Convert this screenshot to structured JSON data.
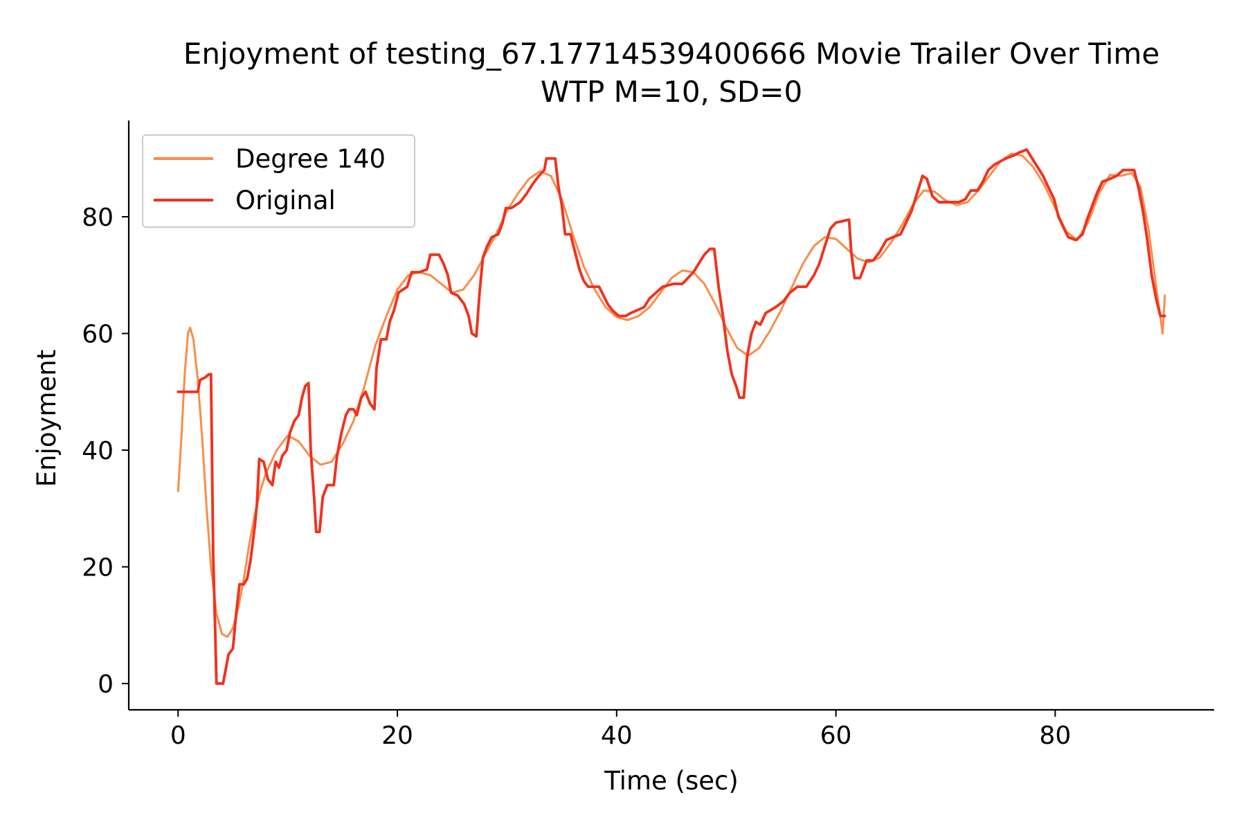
{
  "chart_data": {
    "type": "line",
    "title": "Enjoyment of testing_67.17714539400666 Movie Trailer Over Time",
    "subtitle": "WTP M=10, SD=0",
    "xlabel": "Time (sec)",
    "ylabel": "Enjoyment",
    "xlim": [
      -4.5,
      94.5
    ],
    "ylim": [
      -4.5,
      96.5
    ],
    "xticks": [
      0,
      20,
      40,
      60,
      80
    ],
    "yticks": [
      0,
      20,
      40,
      60,
      80
    ],
    "legend_position": "top-left",
    "grid": false,
    "series": [
      {
        "name": "Degree 140",
        "color": "#f98c4a",
        "line_width": 2,
        "points": [
          [
            0,
            33
          ],
          [
            0.3,
            42
          ],
          [
            0.6,
            53
          ],
          [
            0.9,
            60
          ],
          [
            1.1,
            61
          ],
          [
            1.4,
            59
          ],
          [
            1.8,
            52
          ],
          [
            2.2,
            42
          ],
          [
            2.6,
            30
          ],
          [
            3.0,
            20
          ],
          [
            3.5,
            12
          ],
          [
            4.0,
            8.5
          ],
          [
            4.5,
            8
          ],
          [
            5.0,
            9.5
          ],
          [
            5.5,
            13
          ],
          [
            6.0,
            18
          ],
          [
            6.5,
            24
          ],
          [
            7.0,
            29
          ],
          [
            7.5,
            33
          ],
          [
            8.0,
            36
          ],
          [
            9.0,
            40
          ],
          [
            10.0,
            42.5
          ],
          [
            11.0,
            41.5
          ],
          [
            12.0,
            39
          ],
          [
            13.0,
            37.5
          ],
          [
            14.0,
            38
          ],
          [
            15.0,
            41
          ],
          [
            16.0,
            45
          ],
          [
            17.0,
            51
          ],
          [
            18.0,
            58
          ],
          [
            19.0,
            63
          ],
          [
            20.0,
            67.5
          ],
          [
            21.0,
            70
          ],
          [
            22.0,
            70.5
          ],
          [
            23.0,
            70
          ],
          [
            24.0,
            68.5
          ],
          [
            25.0,
            67
          ],
          [
            26.0,
            67.5
          ],
          [
            27.0,
            70
          ],
          [
            28.0,
            73.5
          ],
          [
            29.0,
            77
          ],
          [
            30.0,
            81
          ],
          [
            31.0,
            84
          ],
          [
            32.0,
            86.5
          ],
          [
            33.0,
            87.8
          ],
          [
            34.0,
            87
          ],
          [
            35.0,
            83
          ],
          [
            36.0,
            77
          ],
          [
            37.0,
            71.5
          ],
          [
            38.0,
            67.5
          ],
          [
            39.0,
            64.5
          ],
          [
            40.0,
            62.8
          ],
          [
            41.0,
            62.3
          ],
          [
            42.0,
            63
          ],
          [
            43.0,
            64.5
          ],
          [
            44.0,
            67
          ],
          [
            45.0,
            69.5
          ],
          [
            46.0,
            70.8
          ],
          [
            47.0,
            70.5
          ],
          [
            48.0,
            68.5
          ],
          [
            49.0,
            65
          ],
          [
            50.0,
            61
          ],
          [
            51.0,
            57.5
          ],
          [
            52.0,
            56.2
          ],
          [
            53.0,
            57.5
          ],
          [
            54.0,
            60.5
          ],
          [
            55.0,
            64
          ],
          [
            56.0,
            68
          ],
          [
            57.0,
            72
          ],
          [
            58.0,
            75
          ],
          [
            59.0,
            76.5
          ],
          [
            60.0,
            76.2
          ],
          [
            61.0,
            74.5
          ],
          [
            62.0,
            72.8
          ],
          [
            63.0,
            72.2
          ],
          [
            64.0,
            73
          ],
          [
            65.0,
            75.5
          ],
          [
            66.0,
            78.5
          ],
          [
            67.0,
            82
          ],
          [
            68.0,
            84.5
          ],
          [
            69.0,
            84.3
          ],
          [
            70.0,
            82.8
          ],
          [
            71.0,
            82
          ],
          [
            72.0,
            82.5
          ],
          [
            73.0,
            84.5
          ],
          [
            74.0,
            87
          ],
          [
            75.0,
            89.5
          ],
          [
            76.0,
            90.8
          ],
          [
            77.0,
            90.5
          ],
          [
            78.0,
            88.5
          ],
          [
            79.0,
            85.5
          ],
          [
            80.0,
            81.5
          ],
          [
            81.0,
            77.5
          ],
          [
            82.0,
            76
          ],
          [
            83.0,
            79
          ],
          [
            84.0,
            84
          ],
          [
            85.0,
            87.2
          ],
          [
            86.0,
            87
          ],
          [
            87.0,
            87.5
          ],
          [
            87.8,
            85
          ],
          [
            88.5,
            78
          ],
          [
            89.0,
            71
          ],
          [
            89.5,
            64
          ],
          [
            89.8,
            60
          ],
          [
            90.0,
            66.5
          ]
        ]
      },
      {
        "name": "Original",
        "color": "#f0321e",
        "line_width": 2.6,
        "points": [
          [
            0,
            50
          ],
          [
            1.8,
            50
          ],
          [
            2.0,
            52
          ],
          [
            2.5,
            52.5
          ],
          [
            2.8,
            53
          ],
          [
            3.0,
            53
          ],
          [
            3.2,
            22
          ],
          [
            3.4,
            8
          ],
          [
            3.5,
            0
          ],
          [
            4.1,
            0
          ],
          [
            4.3,
            2
          ],
          [
            4.6,
            5
          ],
          [
            5.0,
            6
          ],
          [
            5.3,
            12
          ],
          [
            5.6,
            17
          ],
          [
            6.0,
            17
          ],
          [
            6.3,
            18
          ],
          [
            6.6,
            21
          ],
          [
            6.8,
            24
          ],
          [
            7.0,
            27
          ],
          [
            7.2,
            31
          ],
          [
            7.4,
            38.5
          ],
          [
            7.8,
            38
          ],
          [
            8.2,
            35
          ],
          [
            8.6,
            34
          ],
          [
            8.9,
            38
          ],
          [
            9.2,
            37
          ],
          [
            9.5,
            39
          ],
          [
            9.9,
            40
          ],
          [
            10.2,
            43
          ],
          [
            10.6,
            45
          ],
          [
            11.0,
            46
          ],
          [
            11.3,
            49
          ],
          [
            11.6,
            51
          ],
          [
            11.9,
            51.5
          ],
          [
            12.1,
            40
          ],
          [
            12.4,
            32
          ],
          [
            12.6,
            26
          ],
          [
            12.9,
            26
          ],
          [
            13.2,
            32
          ],
          [
            13.6,
            34
          ],
          [
            13.9,
            34
          ],
          [
            14.2,
            34
          ],
          [
            14.5,
            39
          ],
          [
            14.9,
            43
          ],
          [
            15.3,
            46
          ],
          [
            15.6,
            47
          ],
          [
            16.0,
            47
          ],
          [
            16.3,
            46
          ],
          [
            16.7,
            49
          ],
          [
            17.1,
            50
          ],
          [
            17.5,
            48
          ],
          [
            17.9,
            47
          ],
          [
            18.1,
            54
          ],
          [
            18.5,
            59
          ],
          [
            19.0,
            59
          ],
          [
            19.3,
            62
          ],
          [
            19.7,
            64
          ],
          [
            20.1,
            67
          ],
          [
            20.5,
            67.5
          ],
          [
            20.9,
            68
          ],
          [
            21.3,
            70.5
          ],
          [
            22.0,
            70.5
          ],
          [
            22.7,
            71
          ],
          [
            23.0,
            73.5
          ],
          [
            23.8,
            73.5
          ],
          [
            24.2,
            72
          ],
          [
            24.6,
            70
          ],
          [
            24.9,
            67
          ],
          [
            25.5,
            66.5
          ],
          [
            26.1,
            65
          ],
          [
            26.5,
            63
          ],
          [
            26.8,
            60
          ],
          [
            27.2,
            59.5
          ],
          [
            27.5,
            67
          ],
          [
            27.8,
            73
          ],
          [
            28.2,
            75
          ],
          [
            28.6,
            76.5
          ],
          [
            29.2,
            77
          ],
          [
            29.6,
            79
          ],
          [
            29.9,
            81.5
          ],
          [
            30.4,
            81.5
          ],
          [
            31.2,
            82.5
          ],
          [
            31.8,
            84
          ],
          [
            32.3,
            85.5
          ],
          [
            32.9,
            87
          ],
          [
            33.4,
            88
          ],
          [
            33.6,
            90
          ],
          [
            34.4,
            90
          ],
          [
            34.7,
            85
          ],
          [
            35.0,
            82
          ],
          [
            35.3,
            77
          ],
          [
            35.8,
            77
          ],
          [
            36.2,
            74
          ],
          [
            36.6,
            71
          ],
          [
            37.0,
            69
          ],
          [
            37.4,
            68
          ],
          [
            38.4,
            68
          ],
          [
            38.8,
            66.5
          ],
          [
            39.2,
            65
          ],
          [
            39.6,
            64
          ],
          [
            40.2,
            63
          ],
          [
            40.8,
            63
          ],
          [
            41.3,
            63.5
          ],
          [
            41.9,
            64
          ],
          [
            42.5,
            64.5
          ],
          [
            43.0,
            66
          ],
          [
            43.6,
            67
          ],
          [
            44.2,
            68
          ],
          [
            45.2,
            68.5
          ],
          [
            46.0,
            68.5
          ],
          [
            46.5,
            69.5
          ],
          [
            47.0,
            70.5
          ],
          [
            47.5,
            72
          ],
          [
            48.0,
            73.5
          ],
          [
            48.5,
            74.5
          ],
          [
            48.9,
            74.5
          ],
          [
            49.3,
            68
          ],
          [
            49.7,
            63
          ],
          [
            50.1,
            57
          ],
          [
            50.5,
            53
          ],
          [
            50.9,
            51
          ],
          [
            51.2,
            49
          ],
          [
            51.6,
            49
          ],
          [
            51.9,
            56
          ],
          [
            52.3,
            60
          ],
          [
            52.7,
            62
          ],
          [
            53.1,
            61.5
          ],
          [
            53.6,
            63.5
          ],
          [
            54.5,
            64.5
          ],
          [
            55.2,
            65.5
          ],
          [
            55.8,
            67
          ],
          [
            56.5,
            68
          ],
          [
            57.3,
            68
          ],
          [
            58.0,
            70
          ],
          [
            58.5,
            72
          ],
          [
            59.0,
            75
          ],
          [
            59.5,
            78
          ],
          [
            60.0,
            79
          ],
          [
            61.2,
            79.5
          ],
          [
            61.4,
            74
          ],
          [
            61.7,
            69.5
          ],
          [
            62.2,
            69.5
          ],
          [
            62.8,
            72.5
          ],
          [
            63.4,
            72.5
          ],
          [
            64.0,
            74
          ],
          [
            64.6,
            76
          ],
          [
            65.2,
            76.5
          ],
          [
            65.9,
            77
          ],
          [
            66.4,
            79
          ],
          [
            66.9,
            81
          ],
          [
            67.4,
            84
          ],
          [
            67.9,
            87
          ],
          [
            68.3,
            86.5
          ],
          [
            68.8,
            83.5
          ],
          [
            69.4,
            82.5
          ],
          [
            70.0,
            82.5
          ],
          [
            71.2,
            82.5
          ],
          [
            71.8,
            83
          ],
          [
            72.3,
            84.5
          ],
          [
            72.9,
            84.5
          ],
          [
            73.4,
            86
          ],
          [
            73.9,
            88
          ],
          [
            74.5,
            89
          ],
          [
            75.0,
            89.5
          ],
          [
            75.5,
            90
          ],
          [
            76.2,
            90.5
          ],
          [
            76.7,
            91
          ],
          [
            77.4,
            91.5
          ],
          [
            77.9,
            90
          ],
          [
            78.4,
            88.5
          ],
          [
            78.9,
            87
          ],
          [
            79.4,
            85
          ],
          [
            79.9,
            83
          ],
          [
            80.3,
            80
          ],
          [
            80.8,
            78
          ],
          [
            81.2,
            76.5
          ],
          [
            81.9,
            76
          ],
          [
            82.5,
            77
          ],
          [
            82.9,
            79.5
          ],
          [
            83.3,
            81.5
          ],
          [
            83.8,
            84
          ],
          [
            84.3,
            86
          ],
          [
            85.0,
            86.5
          ],
          [
            85.6,
            87
          ],
          [
            86.2,
            88
          ],
          [
            87.2,
            88
          ],
          [
            87.6,
            85
          ],
          [
            88.0,
            81
          ],
          [
            88.4,
            76
          ],
          [
            88.8,
            70
          ],
          [
            89.2,
            66
          ],
          [
            89.6,
            63
          ],
          [
            90.0,
            63
          ]
        ]
      }
    ]
  }
}
